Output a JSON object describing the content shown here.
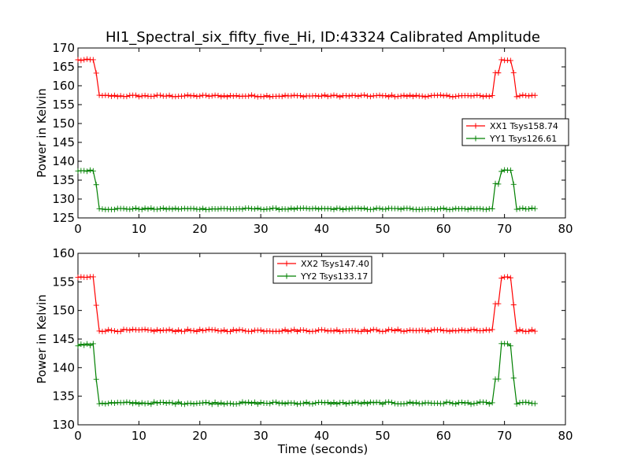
{
  "figure": {
    "title": "HI1_Spectral_six_fifty_five_Hi, ID:43324 Calibrated Amplitude",
    "xlabel": "Time (seconds)"
  },
  "chart_data": [
    {
      "type": "line",
      "ylabel": "Power in Kelvin",
      "xlim": [
        0,
        80
      ],
      "ylim": [
        125,
        170
      ],
      "xticks": [
        "0",
        "10",
        "20",
        "30",
        "40",
        "50",
        "60",
        "70",
        "80"
      ],
      "yticks": [
        "125",
        "130",
        "135",
        "140",
        "145",
        "150",
        "155",
        "160",
        "165",
        "170"
      ],
      "legend_position": "center-right",
      "series": [
        {
          "name": "XX1 Tsys158.74",
          "color": "#ff0000",
          "high": 166.8,
          "mid": 163.5,
          "low": 157.3,
          "noise": 0.25,
          "rise_start": 68.5,
          "rise_end": 69.5,
          "fall_start": 71.2,
          "fall_end": 72.0,
          "drop_start": 2.8,
          "drop_end": 3.4
        },
        {
          "name": "YY1 Tsys126.61",
          "color": "#008000",
          "high": 137.5,
          "mid": 134.0,
          "low": 127.4,
          "noise": 0.2,
          "rise_start": 68.5,
          "rise_end": 69.5,
          "fall_start": 71.2,
          "fall_end": 72.0,
          "drop_start": 2.8,
          "drop_end": 3.4
        }
      ]
    },
    {
      "type": "line",
      "ylabel": "Power in Kelvin",
      "xlim": [
        0,
        80
      ],
      "ylim": [
        130,
        160
      ],
      "xticks": [
        "0",
        "10",
        "20",
        "30",
        "40",
        "50",
        "60",
        "70",
        "80"
      ],
      "yticks": [
        "130",
        "135",
        "140",
        "145",
        "150",
        "155",
        "160"
      ],
      "legend_position": "upper-center",
      "series": [
        {
          "name": "XX2 Tsys147.40",
          "color": "#ff0000",
          "high": 155.8,
          "mid": 151.0,
          "low": 146.5,
          "noise": 0.2,
          "rise_start": 68.5,
          "rise_end": 69.5,
          "fall_start": 71.2,
          "fall_end": 72.0,
          "drop_start": 2.8,
          "drop_end": 3.4
        },
        {
          "name": "YY2 Tsys133.17",
          "color": "#008000",
          "high": 144.0,
          "mid": 138.0,
          "low": 133.8,
          "noise": 0.2,
          "rise_start": 68.5,
          "rise_end": 69.5,
          "fall_start": 71.2,
          "fall_end": 72.0,
          "drop_start": 2.8,
          "drop_end": 3.4
        }
      ]
    }
  ]
}
